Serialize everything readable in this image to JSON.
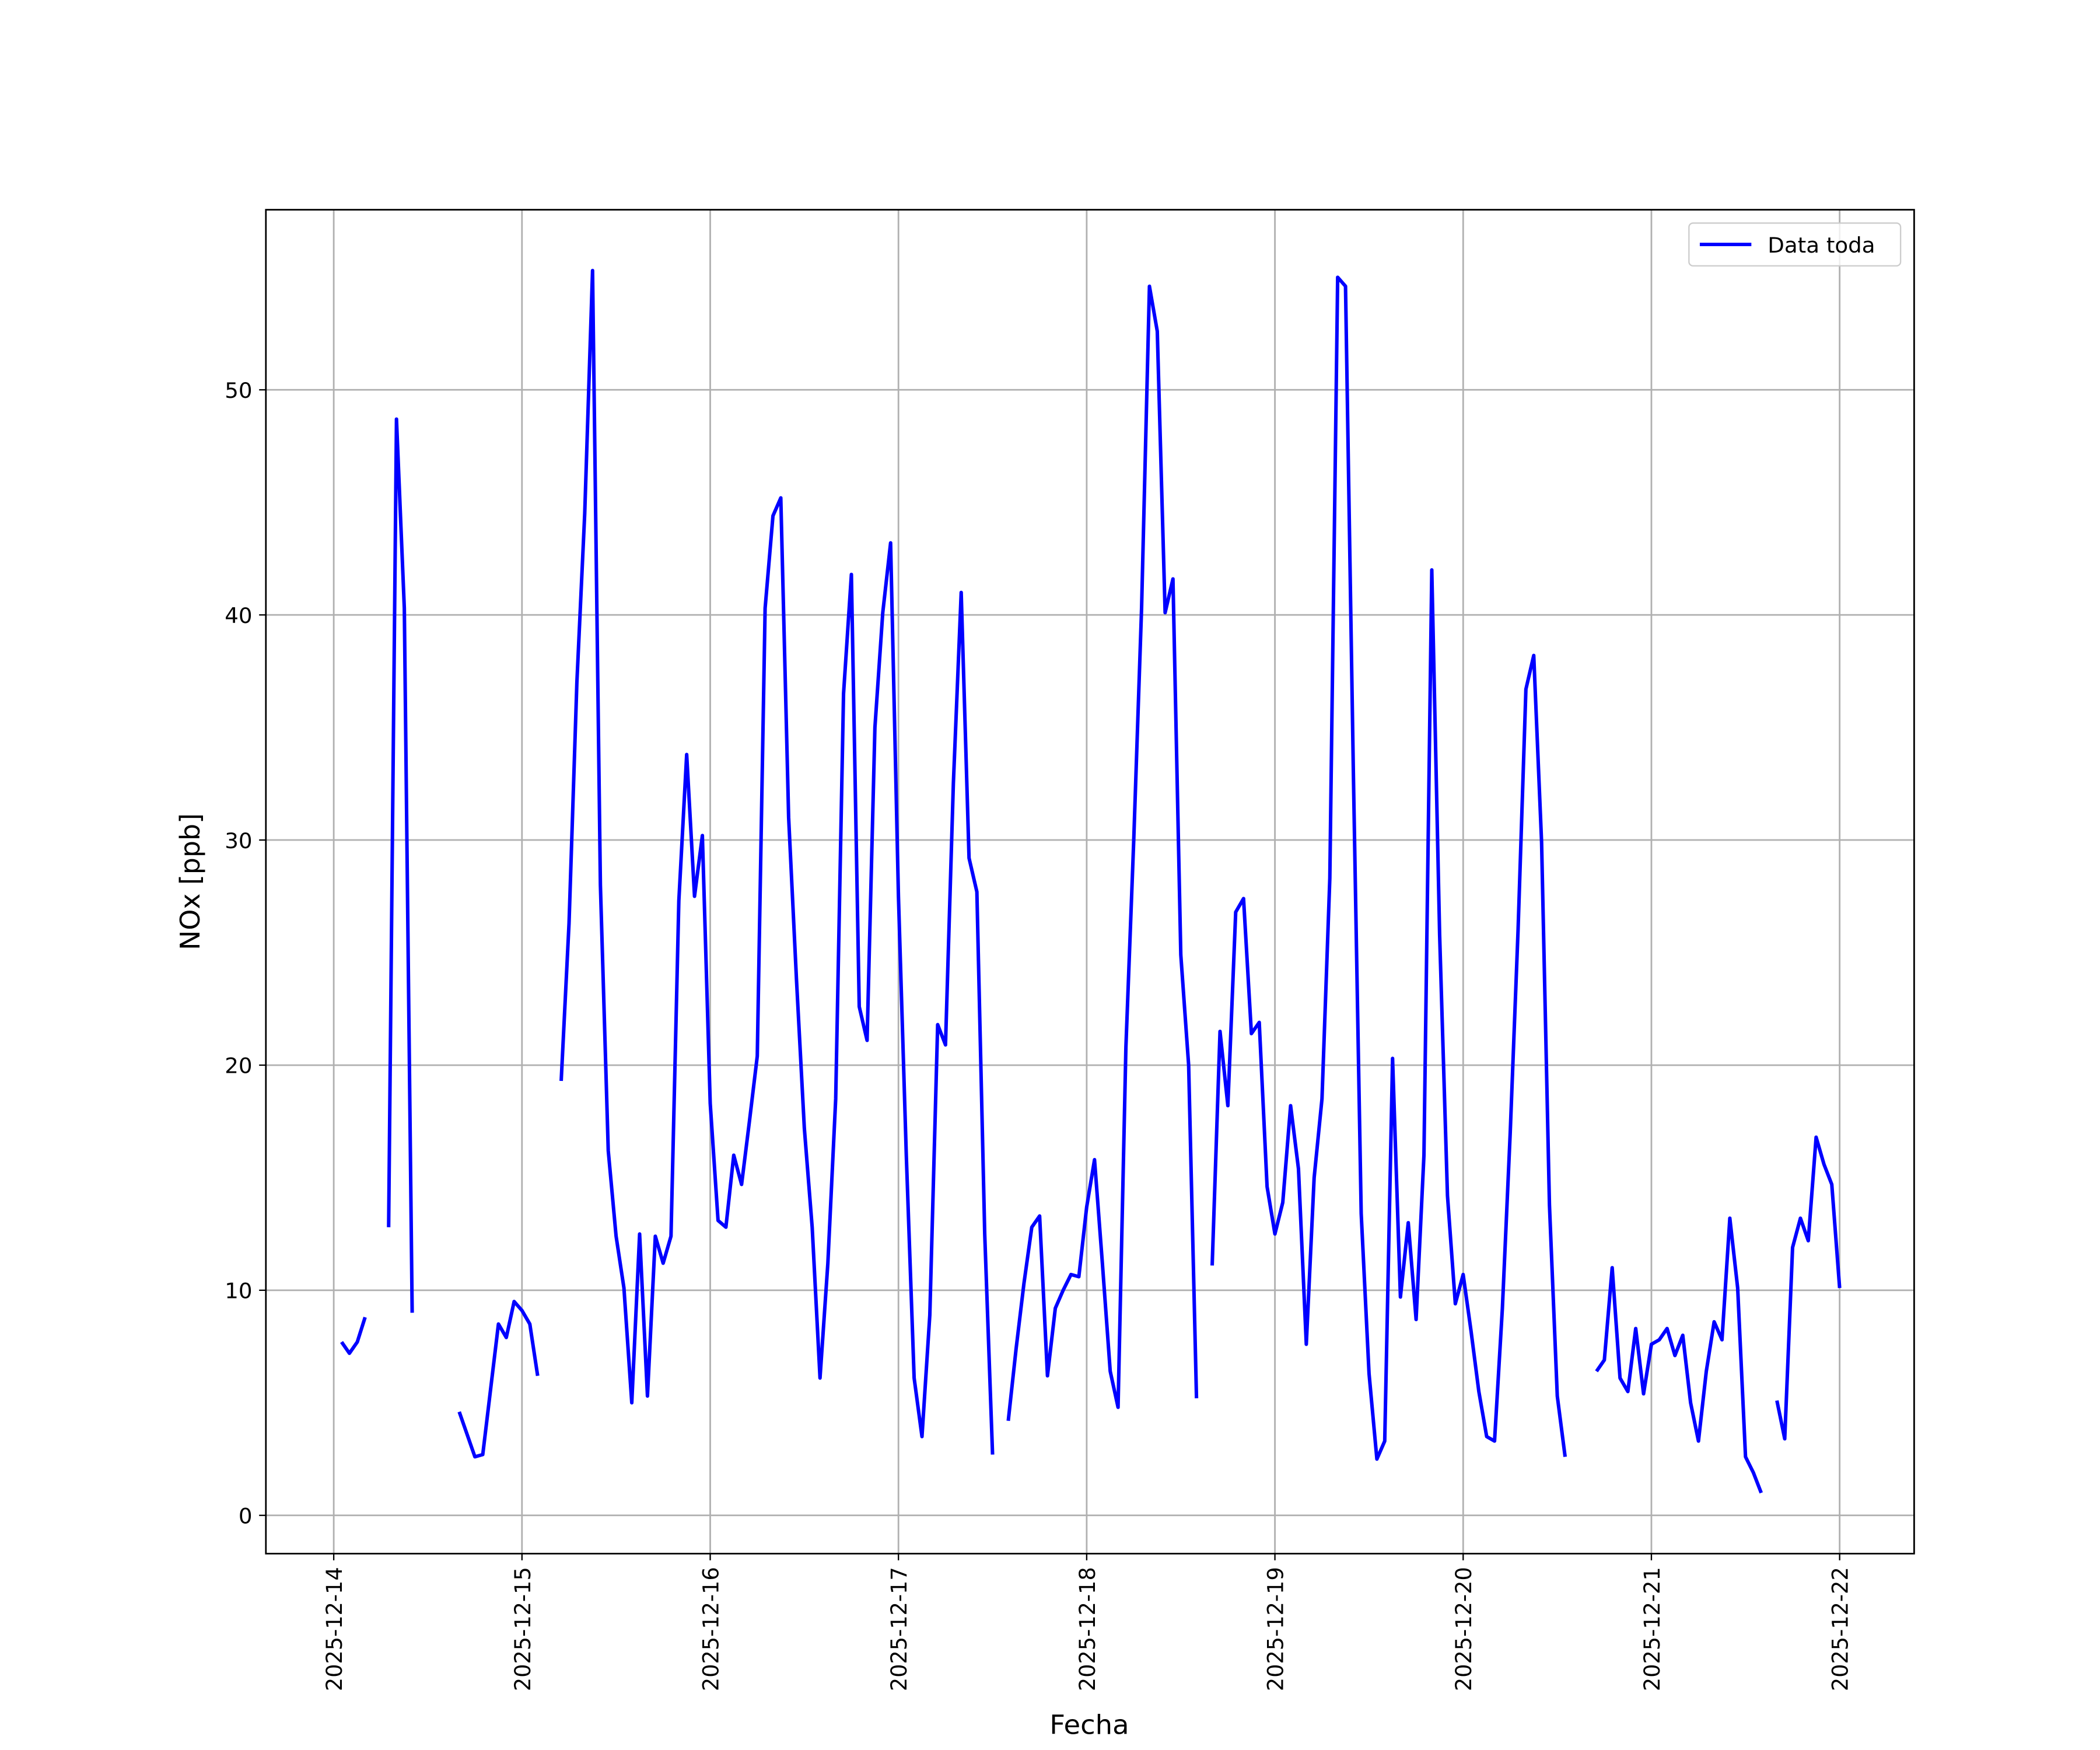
{
  "chart_data": {
    "type": "line",
    "x_label": "Fecha",
    "y_label": "NOx [ppb]",
    "xlim": [
      "2025-12-13 15:21",
      "2025-12-22 09:30"
    ],
    "xticks": [
      "2025-12-14",
      "2025-12-15",
      "2025-12-16",
      "2025-12-17",
      "2025-12-18",
      "2025-12-19",
      "2025-12-20",
      "2025-12-21",
      "2025-12-22"
    ],
    "ylim": [
      -1.7,
      58.0
    ],
    "yticks": [
      0,
      10,
      20,
      30,
      40,
      50
    ],
    "grid": true,
    "legend": "upper right",
    "x": [
      "2025-12-14 01:00",
      "2025-12-14 02:00",
      "2025-12-14 03:00",
      "2025-12-14 04:00",
      "2025-12-14 05:00",
      "2025-12-14 06:00",
      "2025-12-14 07:00",
      "2025-12-14 08:00",
      "2025-12-14 09:00",
      "2025-12-14 10:00",
      "2025-12-14 11:00",
      "2025-12-14 12:00",
      "2025-12-14 13:00",
      "2025-12-14 14:00",
      "2025-12-14 15:00",
      "2025-12-14 16:00",
      "2025-12-14 17:00",
      "2025-12-14 18:00",
      "2025-12-14 19:00",
      "2025-12-14 20:00",
      "2025-12-14 21:00",
      "2025-12-14 22:00",
      "2025-12-14 23:00",
      "2025-12-15 00:00",
      "2025-12-15 01:00",
      "2025-12-15 02:00",
      "2025-12-15 03:00",
      "2025-12-15 04:00",
      "2025-12-15 05:00",
      "2025-12-15 06:00",
      "2025-12-15 07:00",
      "2025-12-15 08:00",
      "2025-12-15 09:00",
      "2025-12-15 10:00",
      "2025-12-15 11:00",
      "2025-12-15 12:00",
      "2025-12-15 13:00",
      "2025-12-15 14:00",
      "2025-12-15 15:00",
      "2025-12-15 16:00",
      "2025-12-15 17:00",
      "2025-12-15 18:00",
      "2025-12-15 19:00",
      "2025-12-15 20:00",
      "2025-12-15 21:00",
      "2025-12-15 22:00",
      "2025-12-15 23:00",
      "2025-12-16 00:00",
      "2025-12-16 01:00",
      "2025-12-16 02:00",
      "2025-12-16 03:00",
      "2025-12-16 04:00",
      "2025-12-16 05:00",
      "2025-12-16 06:00",
      "2025-12-16 07:00",
      "2025-12-16 08:00",
      "2025-12-16 09:00",
      "2025-12-16 10:00",
      "2025-12-16 11:00",
      "2025-12-16 12:00",
      "2025-12-16 13:00",
      "2025-12-16 14:00",
      "2025-12-16 15:00",
      "2025-12-16 16:00",
      "2025-12-16 17:00",
      "2025-12-16 18:00",
      "2025-12-16 19:00",
      "2025-12-16 20:00",
      "2025-12-16 21:00",
      "2025-12-16 22:00",
      "2025-12-16 23:00",
      "2025-12-17 00:00",
      "2025-12-17 01:00",
      "2025-12-17 02:00",
      "2025-12-17 03:00",
      "2025-12-17 04:00",
      "2025-12-17 05:00",
      "2025-12-17 06:00",
      "2025-12-17 07:00",
      "2025-12-17 08:00",
      "2025-12-17 09:00",
      "2025-12-17 10:00",
      "2025-12-17 11:00",
      "2025-12-17 12:00",
      "2025-12-17 13:00",
      "2025-12-17 14:00",
      "2025-12-17 15:00",
      "2025-12-17 16:00",
      "2025-12-17 17:00",
      "2025-12-17 18:00",
      "2025-12-17 19:00",
      "2025-12-17 20:00",
      "2025-12-17 21:00",
      "2025-12-17 22:00",
      "2025-12-17 23:00",
      "2025-12-18 00:00",
      "2025-12-18 01:00",
      "2025-12-18 02:00",
      "2025-12-18 03:00",
      "2025-12-18 04:00",
      "2025-12-18 05:00",
      "2025-12-18 06:00",
      "2025-12-18 07:00",
      "2025-12-18 08:00",
      "2025-12-18 09:00",
      "2025-12-18 10:00",
      "2025-12-18 11:00",
      "2025-12-18 12:00",
      "2025-12-18 13:00",
      "2025-12-18 14:00",
      "2025-12-18 15:00",
      "2025-12-18 16:00",
      "2025-12-18 17:00",
      "2025-12-18 18:00",
      "2025-12-18 19:00",
      "2025-12-18 20:00",
      "2025-12-18 21:00",
      "2025-12-18 22:00",
      "2025-12-18 23:00",
      "2025-12-19 00:00",
      "2025-12-19 01:00",
      "2025-12-19 02:00",
      "2025-12-19 03:00",
      "2025-12-19 04:00",
      "2025-12-19 05:00",
      "2025-12-19 06:00",
      "2025-12-19 07:00",
      "2025-12-19 08:00",
      "2025-12-19 09:00",
      "2025-12-19 10:00",
      "2025-12-19 11:00",
      "2025-12-19 12:00",
      "2025-12-19 13:00",
      "2025-12-19 14:00",
      "2025-12-19 15:00",
      "2025-12-19 16:00",
      "2025-12-19 17:00",
      "2025-12-19 18:00",
      "2025-12-19 19:00",
      "2025-12-19 20:00",
      "2025-12-19 21:00",
      "2025-12-19 22:00",
      "2025-12-19 23:00",
      "2025-12-20 00:00",
      "2025-12-20 01:00",
      "2025-12-20 02:00",
      "2025-12-20 03:00",
      "2025-12-20 04:00",
      "2025-12-20 05:00",
      "2025-12-20 06:00",
      "2025-12-20 07:00",
      "2025-12-20 08:00",
      "2025-12-20 09:00",
      "2025-12-20 10:00",
      "2025-12-20 11:00",
      "2025-12-20 12:00",
      "2025-12-20 13:00",
      "2025-12-20 14:00",
      "2025-12-20 15:00",
      "2025-12-20 16:00",
      "2025-12-20 17:00",
      "2025-12-20 18:00",
      "2025-12-20 19:00",
      "2025-12-20 20:00",
      "2025-12-20 21:00",
      "2025-12-20 22:00",
      "2025-12-20 23:00",
      "2025-12-21 00:00",
      "2025-12-21 01:00",
      "2025-12-21 02:00",
      "2025-12-21 03:00",
      "2025-12-21 04:00",
      "2025-12-21 05:00",
      "2025-12-21 06:00",
      "2025-12-21 07:00",
      "2025-12-21 08:00",
      "2025-12-21 09:00",
      "2025-12-21 10:00",
      "2025-12-21 11:00",
      "2025-12-21 12:00",
      "2025-12-21 13:00",
      "2025-12-21 14:00",
      "2025-12-21 15:00",
      "2025-12-21 16:00",
      "2025-12-21 17:00",
      "2025-12-21 18:00",
      "2025-12-21 19:00",
      "2025-12-21 20:00",
      "2025-12-21 21:00",
      "2025-12-21 22:00",
      "2025-12-21 23:00",
      "2025-12-22 00:00"
    ],
    "series": [
      {
        "name": "Data toda",
        "color": "#0000ff",
        "values": [
          7.7,
          7.2,
          7.7,
          8.8,
          null,
          null,
          12.8,
          48.7,
          40.3,
          9.0,
          null,
          null,
          null,
          null,
          null,
          4.6,
          3.6,
          2.6,
          2.7,
          5.6,
          8.5,
          7.9,
          9.5,
          9.1,
          8.5,
          6.2,
          null,
          null,
          19.3,
          26.3,
          37,
          44.5,
          55.3,
          28,
          16.2,
          12.4,
          10.1,
          5.0,
          12.5,
          5.3,
          12.4,
          11.2,
          12.4,
          27.3,
          33.8,
          27.5,
          30.2,
          18.3,
          13.1,
          12.8,
          16,
          14.7,
          17.5,
          20.4,
          40.3,
          44.4,
          45.2,
          31,
          23.8,
          17.2,
          12.8,
          6.1,
          11.2,
          18.5,
          36.5,
          41.8,
          22.6,
          21.1,
          35,
          40.1,
          43.2,
          27.5,
          16,
          6.1,
          3.5,
          8.9,
          21.8,
          20.9,
          32.5,
          41,
          29.2,
          27.7,
          12.5,
          2.7,
          null,
          4.2,
          7.4,
          10.3,
          12.8,
          13.3,
          6.2,
          9.2,
          10,
          10.7,
          10.6,
          13.7,
          15.8,
          11.2,
          6.4,
          4.8,
          20.8,
          30,
          40.3,
          54.6,
          52.6,
          40.1,
          41.6,
          24.9,
          20,
          5.2,
          null,
          11.1,
          21.5,
          18.2,
          26.8,
          27.4,
          21.4,
          21.9,
          14.6,
          12.5,
          13.9,
          18.2,
          15.4,
          7.6,
          15,
          18.5,
          28.3,
          55,
          54.6,
          33,
          13.4,
          6.3,
          2.5,
          3.3,
          20.3,
          9.7,
          13,
          8.7,
          16,
          42,
          25.8,
          14.2,
          9.4,
          10.7,
          8.2,
          5.5,
          3.5,
          3.3,
          9.2,
          17,
          26,
          36.7,
          38.2,
          29.9,
          13.8,
          5.3,
          2.6,
          null,
          null,
          null,
          6.4,
          6.9,
          11,
          6.1,
          5.5,
          8.3,
          5.4,
          7.6,
          7.8,
          8.3,
          7.1,
          8,
          5,
          3.3,
          6.4,
          8.6,
          7.8,
          13.2,
          10.1,
          2.6,
          1.9,
          1,
          null,
          5.1,
          3.4,
          11.9,
          13.2,
          12.2,
          16.8,
          15.6,
          14.7,
          10.1
        ]
      }
    ]
  }
}
